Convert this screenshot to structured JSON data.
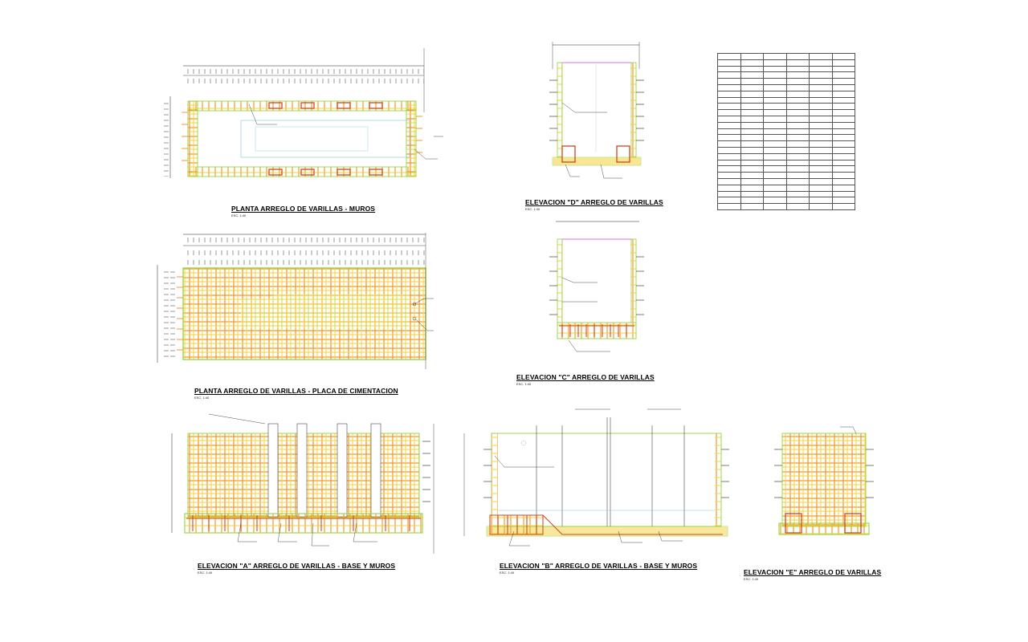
{
  "drawings": {
    "planta_muros": {
      "title": "PLANTA ARREGLO DE VARILLAS - MUROS",
      "scale": "ESC. 1:40"
    },
    "planta_placa": {
      "title": "PLANTA  ARREGLO DE VARILLAS - PLACA DE CIMENTACION",
      "scale": "ESC. 1:40"
    },
    "elev_d": {
      "title": "ELEVACION \"D\" ARREGLO DE VARILLAS",
      "scale": "ESC. 1:40"
    },
    "elev_c": {
      "title": "ELEVACION \"C\" ARREGLO DE VARILLAS",
      "scale": "ESC. 1:40"
    },
    "elev_a": {
      "title": "ELEVACION \"A\" ARREGLO DE VARILLAS - BASE Y MUROS",
      "scale": "ESC. 1:40"
    },
    "elev_b": {
      "title": "ELEVACION \"B\" ARREGLO DE VARILLAS - BASE Y MUROS",
      "scale": "ESC. 1:40"
    },
    "elev_e": {
      "title": "ELEVACION \"E\" ARREGLO DE VARILLAS",
      "scale": "ESC. 1:40"
    }
  },
  "colors": {
    "rebar_orange": "#f29a2e",
    "rebar_yellow": "#f5d23a",
    "rebar_green": "#9bd84a",
    "rebar_red": "#d2461e",
    "line": "#222222",
    "magenta": "#d03cd0"
  }
}
